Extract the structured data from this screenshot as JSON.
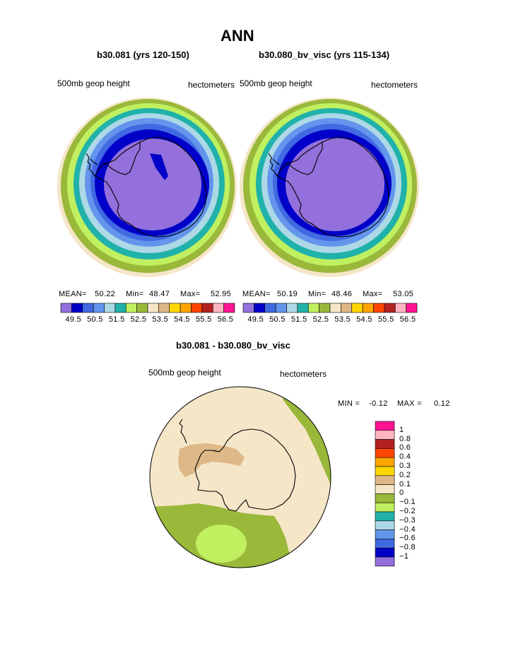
{
  "title": "ANN",
  "panel_a": {
    "case_title": "b30.081 (yrs 120-150)",
    "field": "500mb geop height",
    "units": "hectometers",
    "mean_label": "MEAN=",
    "mean": "50.22",
    "min_label": "Min=",
    "min": "48.47",
    "max_label": "Max=",
    "max": "52.95"
  },
  "panel_b": {
    "case_title": "b30.080_bv_visc (yrs 115-134)",
    "field": "500mb geop height",
    "units": "hectometers",
    "mean_label": "MEAN=",
    "mean": "50.19",
    "min_label": "Min=",
    "min": "48.46",
    "max_label": "Max=",
    "max": "53.05"
  },
  "colorbar_top": {
    "colors": [
      "#9370db",
      "#0000c8",
      "#4169e1",
      "#6495ed",
      "#add8e6",
      "#20b2aa",
      "#c0f060",
      "#9ab83a",
      "#f5e6c8",
      "#deb887",
      "#ffd700",
      "#ffa500",
      "#ff4500",
      "#b22222",
      "#ffb6c1",
      "#ff1493"
    ],
    "labels": [
      "49.5",
      "50.5",
      "51.5",
      "52.5",
      "53.5",
      "54.5",
      "55.5",
      "56.5"
    ]
  },
  "panel_diff": {
    "case_title": "b30.081 - b30.080_bv_visc",
    "field": "500mb geop height",
    "units": "hectometers",
    "min_label": "MIN =",
    "min": "-0.12",
    "max_label": "MAX =",
    "max": "0.12"
  },
  "colorbar_diff": {
    "colors": [
      "#ff1493",
      "#ffb6c1",
      "#b22222",
      "#ff4500",
      "#ffa500",
      "#ffd700",
      "#deb887",
      "#f5e6c8",
      "#9ab83a",
      "#c0f060",
      "#20b2aa",
      "#add8e6",
      "#6495ed",
      "#4169e1",
      "#0000c8",
      "#9370db"
    ],
    "labels": [
      "1",
      "0.8",
      "0.6",
      "0.4",
      "0.3",
      "0.2",
      "0.1",
      "0",
      "−0.1",
      "−0.2",
      "−0.3",
      "−0.4",
      "−0.6",
      "−0.8",
      "−1"
    ]
  }
}
